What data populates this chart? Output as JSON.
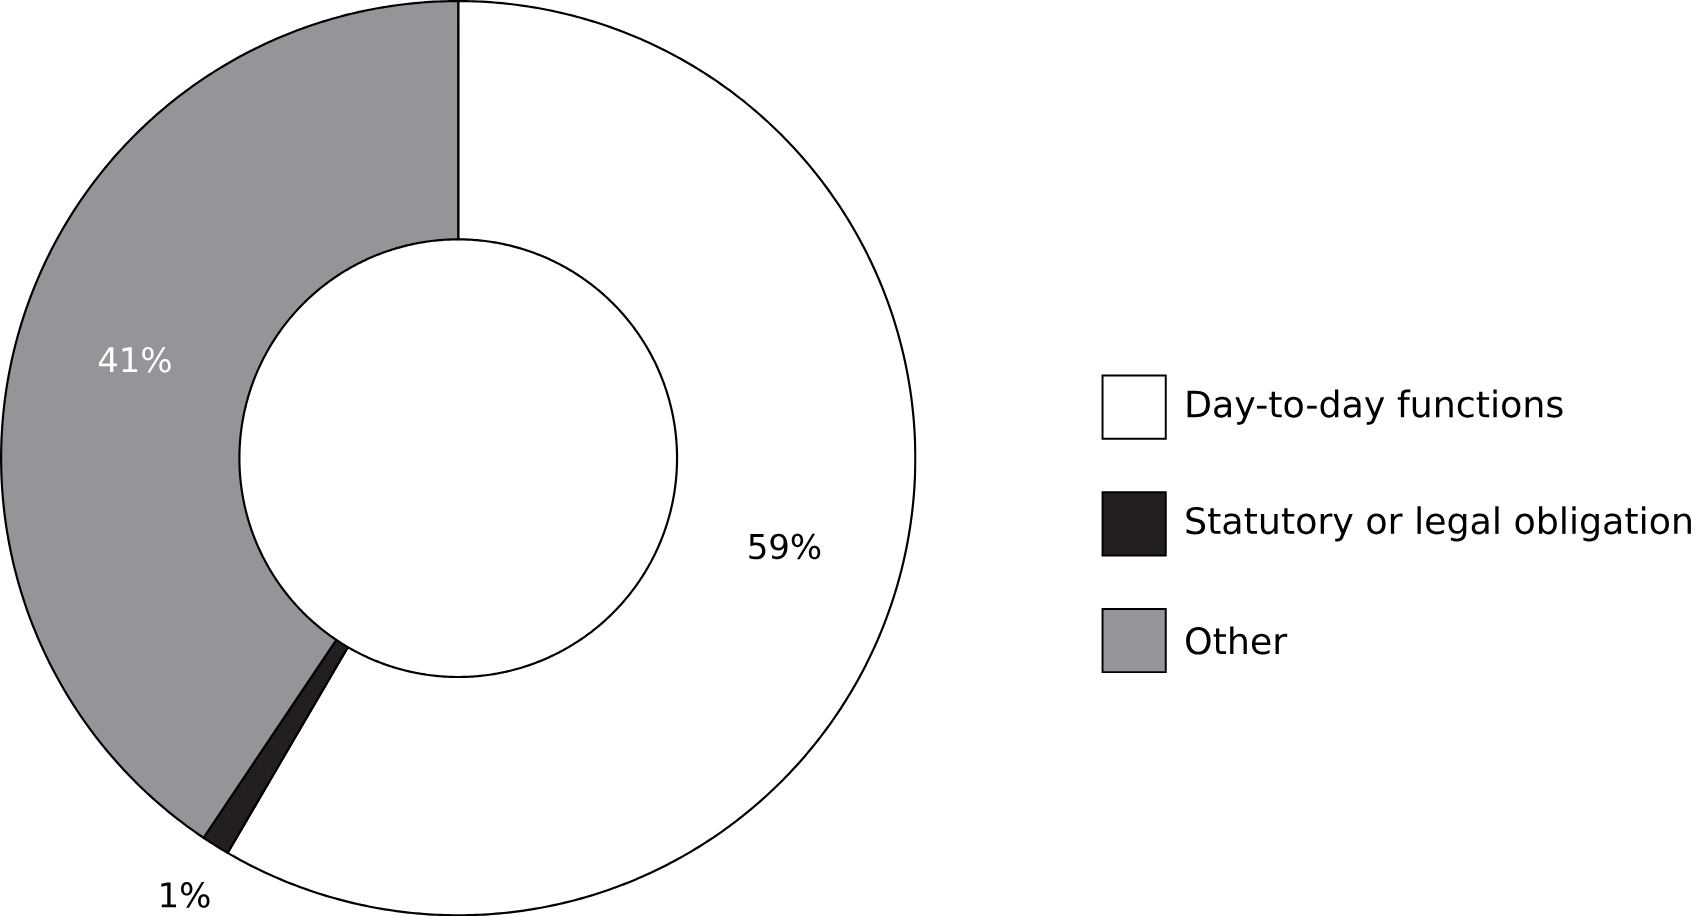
{
  "chart_data": {
    "type": "donut",
    "categories": [
      "Day-to-day functions",
      "Statutory or legal obligation",
      "Other"
    ],
    "values": [
      59,
      1,
      41
    ],
    "colors": [
      "#ffffff",
      "#231f20",
      "#939598"
    ],
    "value_labels": [
      "59%",
      "1%",
      "41%"
    ],
    "legend": "right"
  }
}
